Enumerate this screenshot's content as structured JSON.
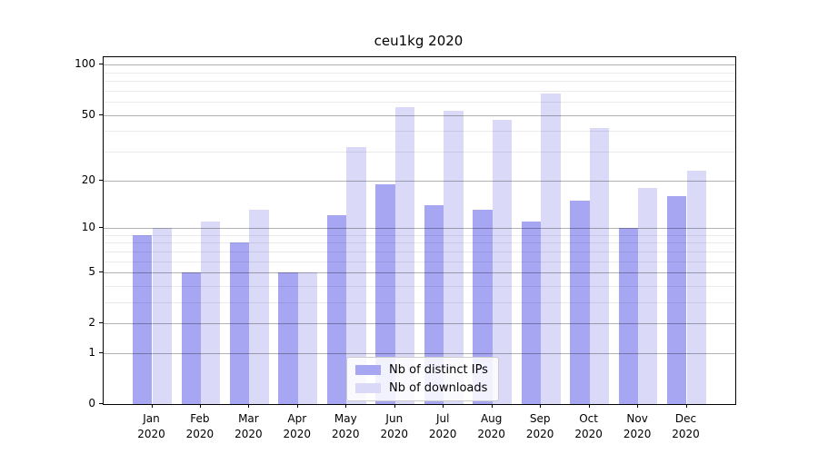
{
  "title": "ceu1kg 2020",
  "chart_data": {
    "type": "bar",
    "title": "ceu1kg 2020",
    "categories": [
      "Jan",
      "Feb",
      "Mar",
      "Apr",
      "May",
      "Jun",
      "Jul",
      "Aug",
      "Sep",
      "Oct",
      "Nov",
      "Dec"
    ],
    "category_year": "2020",
    "series": [
      {
        "name": "Nb of distinct IPs",
        "color": "#a6a6f3",
        "values": [
          9,
          5,
          8,
          5,
          12,
          19,
          14,
          13,
          11,
          15,
          10,
          16
        ]
      },
      {
        "name": "Nb of downloads",
        "color": "#dadaf8",
        "values": [
          10,
          11,
          13,
          5,
          32,
          56,
          53,
          47,
          67,
          42,
          18,
          23
        ]
      }
    ],
    "y_scale": "log1p",
    "y_ticks": [
      0,
      1,
      2,
      5,
      10,
      20,
      50,
      100
    ],
    "y_minor_gridlines": [
      3,
      4,
      6,
      7,
      8,
      9,
      30,
      40,
      60,
      70,
      80,
      90
    ],
    "ylim": [
      0,
      111
    ],
    "grid": true,
    "legend_position": "lower center"
  }
}
